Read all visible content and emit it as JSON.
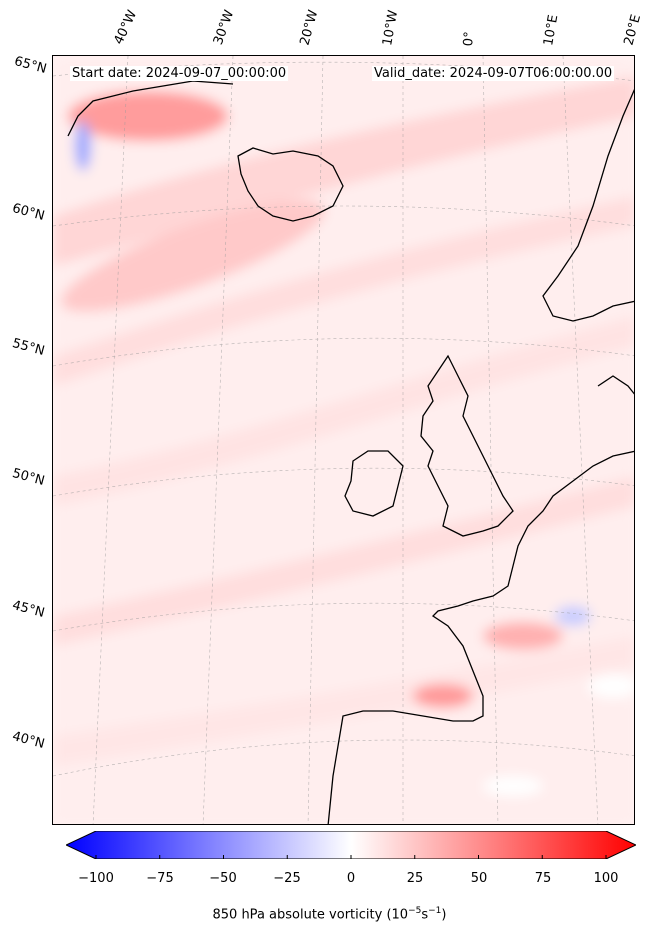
{
  "header": {
    "start_date": "Start date: 2024-09-07_00:00:00",
    "valid_date": "Valid_date: 2024-09-07T06:00:00.00"
  },
  "longitude_labels": [
    "40°W",
    "30°W",
    "20°W",
    "10°W",
    "0°",
    "10°E",
    "20°E"
  ],
  "latitude_labels": [
    "65°N",
    "60°N",
    "55°N",
    "50°N",
    "45°N",
    "40°N"
  ],
  "colorbar": {
    "ticks": [
      "−100",
      "−75",
      "−50",
      "−25",
      "0",
      "25",
      "50",
      "75",
      "100"
    ],
    "min": -100,
    "max": 100,
    "label_main": "850 hPa absolute vorticity (10",
    "label_exp1": "−5",
    "label_mid": "s",
    "label_exp2": "−1",
    "label_end": ")",
    "colors": {
      "negative": "#0000ff",
      "zero": "#ffffff",
      "positive": "#ff0000"
    }
  }
}
